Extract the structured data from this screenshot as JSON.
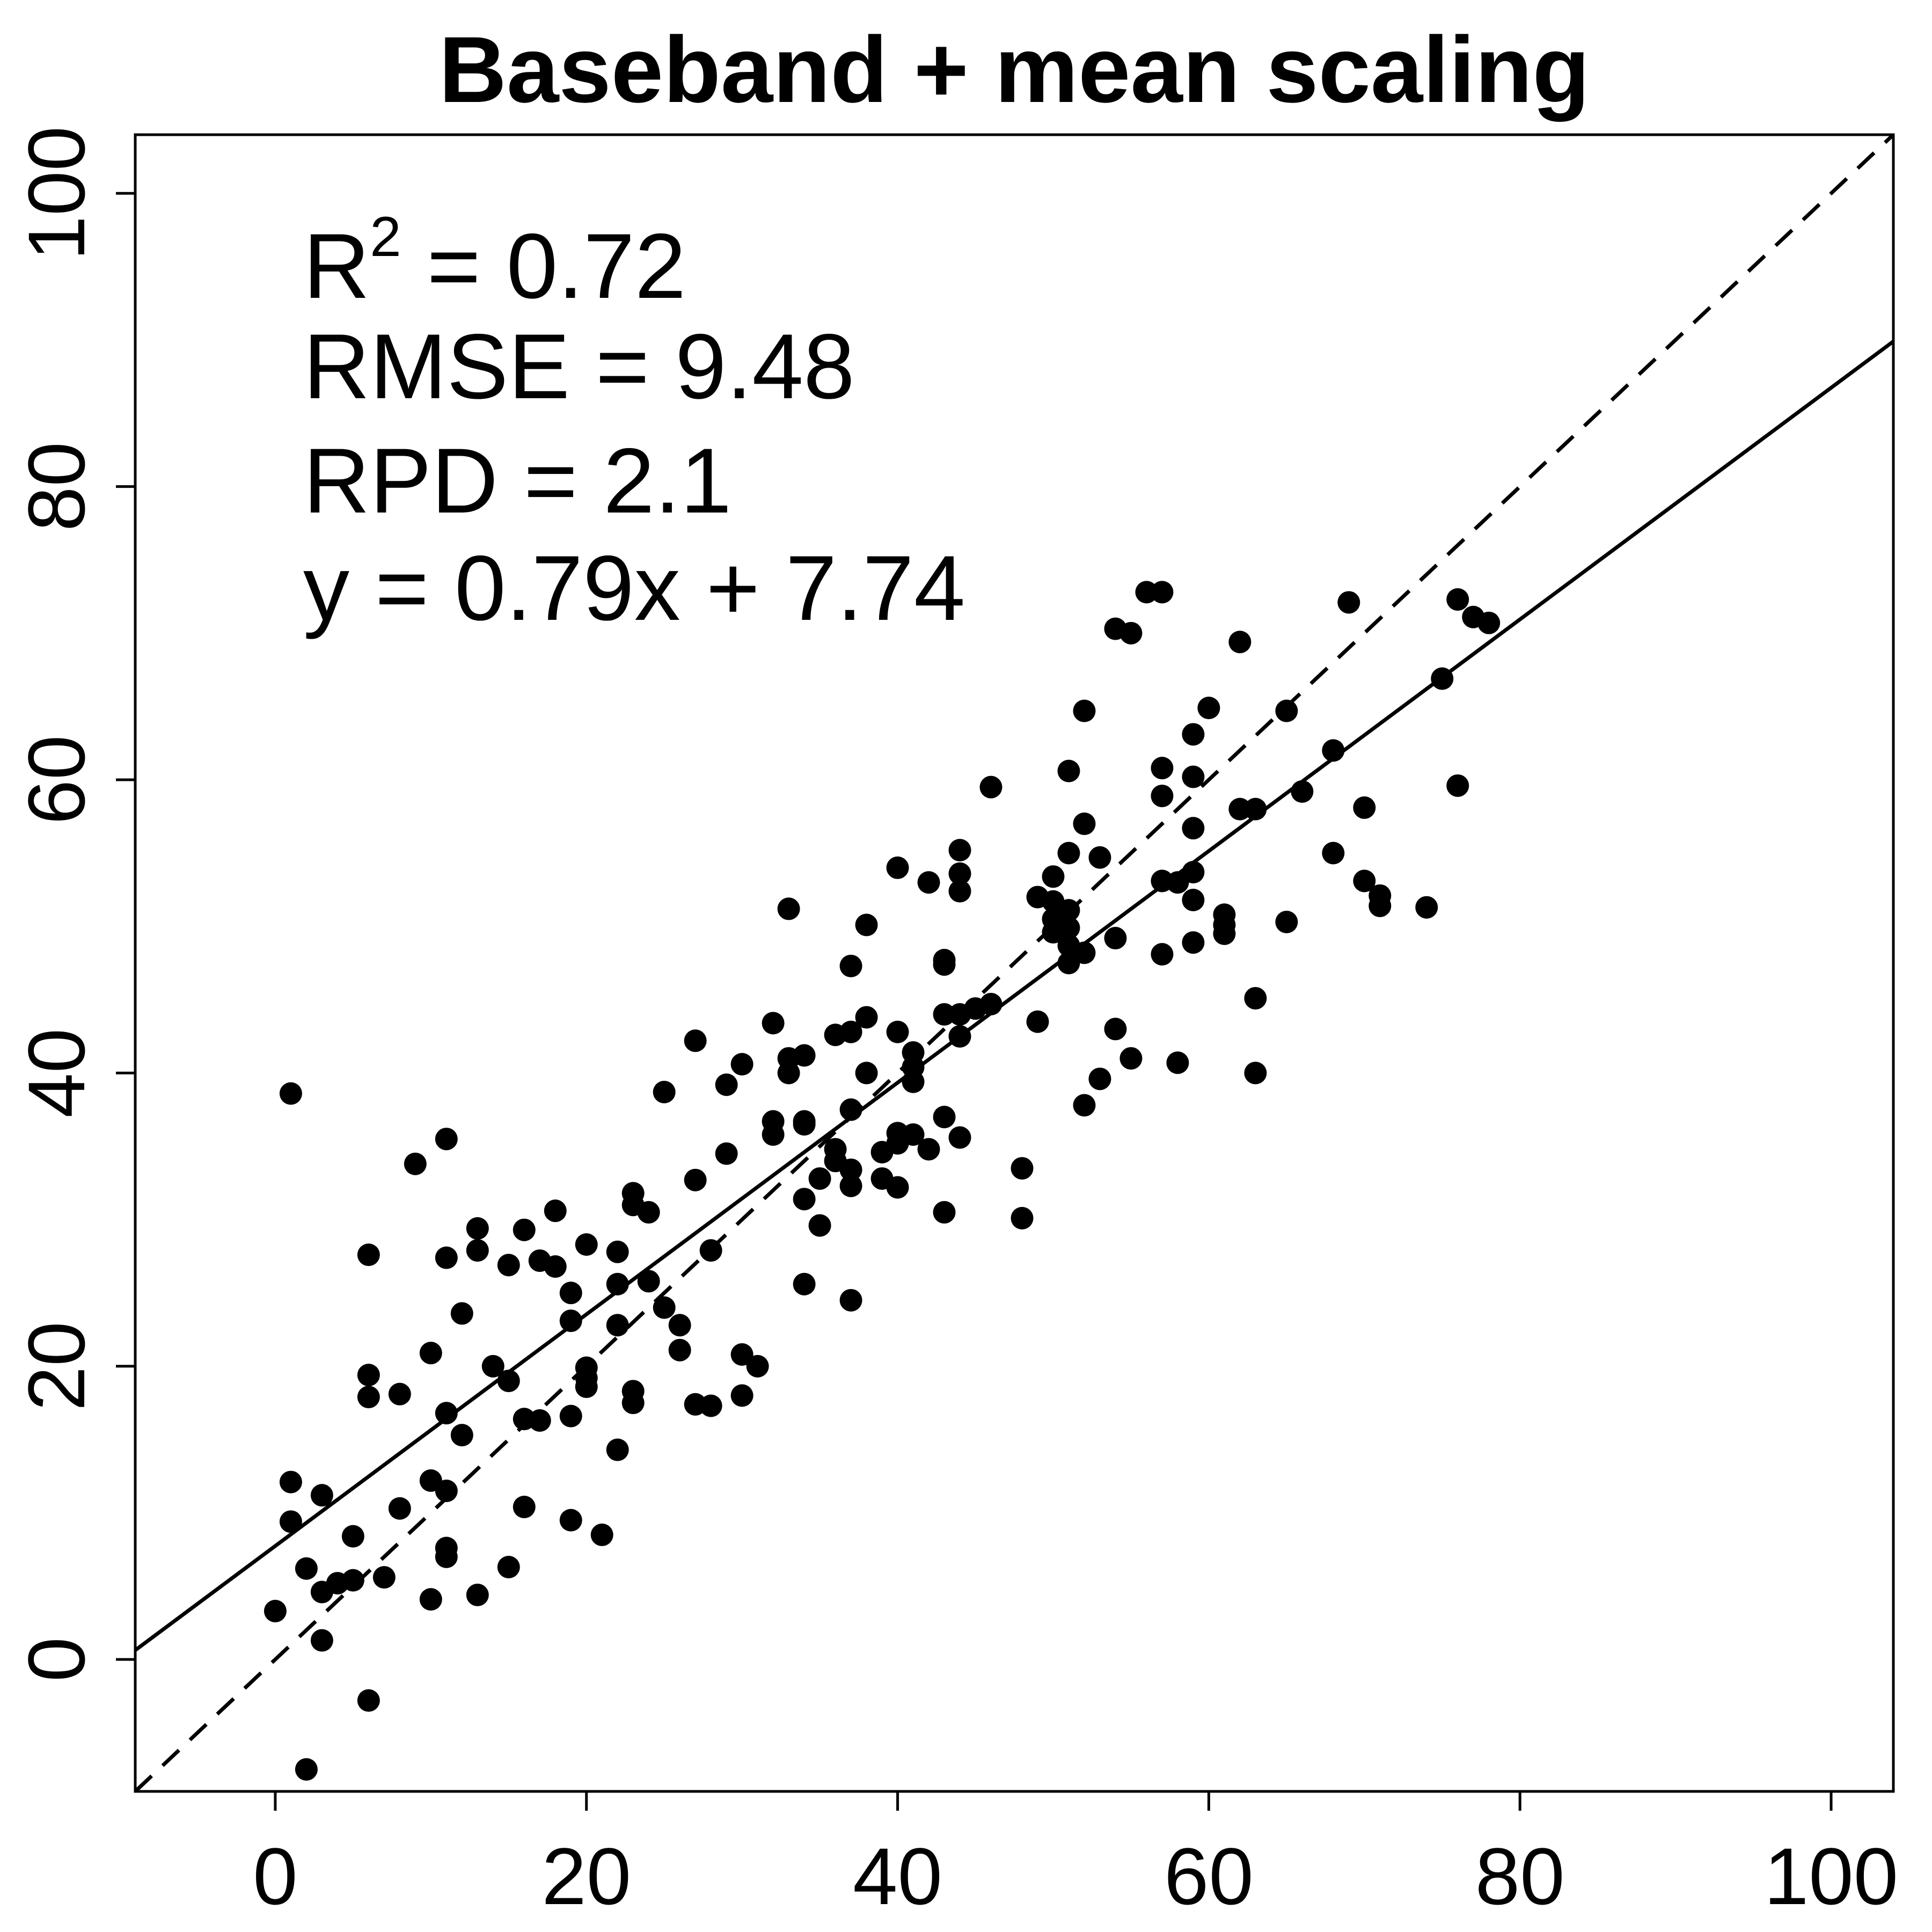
{
  "chart_data": {
    "type": "scatter",
    "title": "Baseband + mean scaling",
    "xlabel": "",
    "ylabel": "",
    "xlim": [
      -9,
      104
    ],
    "ylim": [
      -9,
      104
    ],
    "x_ticks": [
      0,
      20,
      40,
      60,
      80,
      100
    ],
    "y_ticks": [
      0,
      20,
      40,
      60,
      80,
      100
    ],
    "x_tick_labels": [
      "0",
      "20",
      "40",
      "60",
      "80",
      "100"
    ],
    "y_tick_labels": [
      "0",
      "20",
      "40",
      "60",
      "80",
      "100"
    ],
    "grid": false,
    "legend": "none",
    "annotations": {
      "r2_prefix": "R",
      "r2_sup": "2",
      "r2_value": " = 0.72",
      "rmse": "RMSE = 9.48",
      "rpd": "RPD = 2.1",
      "equation": "y = 0.79x + 7.74"
    },
    "fit_line": {
      "slope": 0.79,
      "intercept": 7.74,
      "style": "solid"
    },
    "identity_line": {
      "slope": 1,
      "intercept": 0,
      "style": "dashed"
    },
    "points": [
      [
        1,
        38.6
      ],
      [
        2,
        -7.5
      ],
      [
        6,
        -2.8
      ],
      [
        0,
        3.3
      ],
      [
        3,
        1.3
      ],
      [
        2,
        6.2
      ],
      [
        3,
        4.6
      ],
      [
        4,
        5.2
      ],
      [
        5,
        5.4
      ],
      [
        5,
        8.4
      ],
      [
        1,
        9.4
      ],
      [
        1,
        12.1
      ],
      [
        3,
        11.2
      ],
      [
        7,
        5.6
      ],
      [
        8,
        10.3
      ],
      [
        6,
        17.9
      ],
      [
        6,
        19.4
      ],
      [
        8,
        18.1
      ],
      [
        10,
        4.1
      ],
      [
        10,
        12.2
      ],
      [
        11,
        11.5
      ],
      [
        11,
        7.0
      ],
      [
        11,
        7.6
      ],
      [
        11,
        16.8
      ],
      [
        12,
        15.3
      ],
      [
        13,
        4.4
      ],
      [
        10,
        20.9
      ],
      [
        12,
        23.6
      ],
      [
        6,
        27.6
      ],
      [
        9,
        33.8
      ],
      [
        11,
        27.4
      ],
      [
        11,
        35.5
      ],
      [
        13,
        27.9
      ],
      [
        13,
        29.4
      ],
      [
        14,
        20.0
      ],
      [
        15,
        19.0
      ],
      [
        15,
        6.3
      ],
      [
        15,
        26.9
      ],
      [
        16,
        10.4
      ],
      [
        16,
        16.4
      ],
      [
        17,
        16.3
      ],
      [
        16,
        29.3
      ],
      [
        17,
        27.2
      ],
      [
        18,
        26.8
      ],
      [
        18,
        30.6
      ],
      [
        19,
        25.0
      ],
      [
        19,
        23.1
      ],
      [
        19,
        16.6
      ],
      [
        19,
        9.5
      ],
      [
        20,
        18.6
      ],
      [
        20,
        19.2
      ],
      [
        20,
        19.9
      ],
      [
        20,
        28.3
      ],
      [
        21,
        8.5
      ],
      [
        22,
        14.3
      ],
      [
        22,
        22.8
      ],
      [
        22,
        25.6
      ],
      [
        22,
        27.8
      ],
      [
        23,
        31.0
      ],
      [
        23,
        31.8
      ],
      [
        23,
        18.3
      ],
      [
        23,
        17.5
      ],
      [
        24,
        25.8
      ],
      [
        24,
        30.5
      ],
      [
        25,
        38.7
      ],
      [
        25,
        24.0
      ],
      [
        26,
        22.8
      ],
      [
        26,
        21.1
      ],
      [
        27,
        17.4
      ],
      [
        27,
        32.7
      ],
      [
        27,
        42.2
      ],
      [
        28,
        17.3
      ],
      [
        28,
        27.9
      ],
      [
        29,
        34.5
      ],
      [
        29,
        39.2
      ],
      [
        30,
        40.6
      ],
      [
        30,
        20.8
      ],
      [
        30,
        18.0
      ],
      [
        31,
        20.0
      ],
      [
        32,
        36.7
      ],
      [
        32,
        35.8
      ],
      [
        32,
        43.4
      ],
      [
        33,
        41.0
      ],
      [
        33,
        40.0
      ],
      [
        33,
        51.2
      ],
      [
        34,
        41.2
      ],
      [
        34,
        36.7
      ],
      [
        34,
        36.5
      ],
      [
        34,
        31.4
      ],
      [
        34,
        25.6
      ],
      [
        35,
        32.8
      ],
      [
        35,
        29.6
      ],
      [
        36,
        34.0
      ],
      [
        36,
        34.8
      ],
      [
        36,
        42.6
      ],
      [
        37,
        42.8
      ],
      [
        37,
        47.3
      ],
      [
        37,
        37.5
      ],
      [
        37,
        33.4
      ],
      [
        37,
        32.3
      ],
      [
        37,
        24.5
      ],
      [
        38,
        43.8
      ],
      [
        38,
        50.1
      ],
      [
        38,
        40.0
      ],
      [
        39,
        34.6
      ],
      [
        39,
        32.8
      ],
      [
        40,
        54.0
      ],
      [
        40,
        42.8
      ],
      [
        40,
        35.9
      ],
      [
        40,
        35.2
      ],
      [
        40,
        32.2
      ],
      [
        41,
        39.4
      ],
      [
        41,
        40.4
      ],
      [
        41,
        41.4
      ],
      [
        41,
        35.8
      ],
      [
        42,
        53.0
      ],
      [
        42,
        34.8
      ],
      [
        43,
        30.5
      ],
      [
        43,
        37.0
      ],
      [
        43,
        44.0
      ],
      [
        43,
        47.7
      ],
      [
        43,
        47.4
      ],
      [
        44,
        53.6
      ],
      [
        44,
        52.4
      ],
      [
        44,
        55.2
      ],
      [
        44,
        44.0
      ],
      [
        44,
        42.5
      ],
      [
        44,
        35.6
      ],
      [
        45,
        44.4
      ],
      [
        46,
        44.7
      ],
      [
        46,
        59.5
      ],
      [
        48,
        33.5
      ],
      [
        48,
        30.1
      ],
      [
        49,
        43.5
      ],
      [
        49,
        52.0
      ],
      [
        50,
        53.4
      ],
      [
        50,
        51.7
      ],
      [
        50,
        50.5
      ],
      [
        50,
        49.6
      ],
      [
        51,
        51.1
      ],
      [
        51,
        49.9
      ],
      [
        51,
        48.7
      ],
      [
        51,
        47.5
      ],
      [
        51,
        55.0
      ],
      [
        51,
        60.6
      ],
      [
        52,
        64.7
      ],
      [
        52,
        57.0
      ],
      [
        52,
        48.2
      ],
      [
        52,
        37.8
      ],
      [
        53,
        54.7
      ],
      [
        53,
        39.6
      ],
      [
        54,
        70.3
      ],
      [
        54,
        49.2
      ],
      [
        54,
        43.0
      ],
      [
        55,
        70.0
      ],
      [
        55,
        41.0
      ],
      [
        56,
        72.8
      ],
      [
        57,
        72.8
      ],
      [
        57,
        60.8
      ],
      [
        57,
        58.9
      ],
      [
        57,
        53.1
      ],
      [
        57,
        48.1
      ],
      [
        58,
        53.0
      ],
      [
        58,
        40.7
      ],
      [
        59,
        63.1
      ],
      [
        59,
        60.2
      ],
      [
        59,
        56.7
      ],
      [
        59,
        53.7
      ],
      [
        59,
        51.8
      ],
      [
        59,
        48.9
      ],
      [
        60,
        64.9
      ],
      [
        61,
        50.8
      ],
      [
        61,
        50.1
      ],
      [
        61,
        49.5
      ],
      [
        62,
        69.4
      ],
      [
        62,
        58.0
      ],
      [
        63,
        58.0
      ],
      [
        63,
        45.1
      ],
      [
        63,
        40.0
      ],
      [
        65,
        64.7
      ],
      [
        65,
        50.3
      ],
      [
        66,
        59.2
      ],
      [
        68,
        62.0
      ],
      [
        68,
        55.0
      ],
      [
        69,
        72.1
      ],
      [
        70,
        58.1
      ],
      [
        70,
        53.1
      ],
      [
        71,
        52.1
      ],
      [
        71,
        51.4
      ],
      [
        74,
        51.3
      ],
      [
        75,
        66.9
      ],
      [
        76,
        72.3
      ],
      [
        76,
        59.6
      ],
      [
        77,
        71.1
      ],
      [
        78,
        70.7
      ]
    ]
  }
}
